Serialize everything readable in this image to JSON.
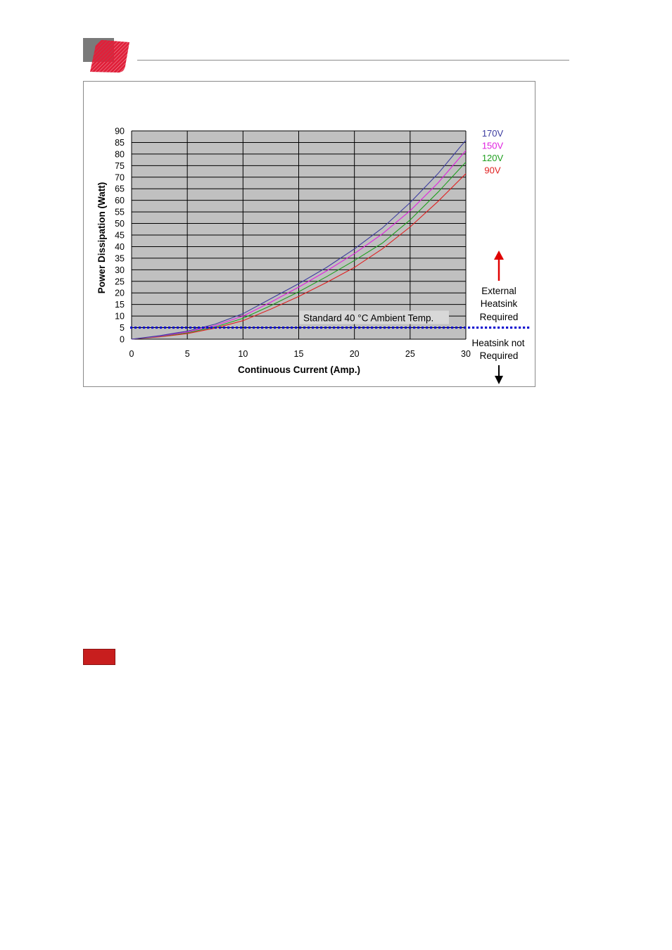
{
  "colors": {
    "plot_background": "#c0c0c0",
    "reference_line": "#1010d0",
    "arrow_up": "#e00000",
    "arrow_down": "#000000",
    "logo_red": "#e0203a",
    "logo_gray": "#7a7a7a",
    "red_tab": "#c81e1e"
  },
  "chart_data": {
    "type": "line",
    "title": "",
    "xlabel": "Continuous Current (Amp.)",
    "ylabel": "Power Dissipation (Watt)",
    "xlim": [
      0,
      30
    ],
    "ylim": [
      0,
      90
    ],
    "xticks": [
      0,
      5,
      10,
      15,
      20,
      25,
      30
    ],
    "yticks": [
      0,
      5,
      10,
      15,
      20,
      25,
      30,
      35,
      40,
      45,
      50,
      55,
      60,
      65,
      70,
      75,
      80,
      85,
      90
    ],
    "grid": true,
    "legend_position": "top-right",
    "x": [
      0,
      2.5,
      5,
      7.5,
      10,
      12.5,
      15,
      17.5,
      20,
      22.5,
      25,
      27.5,
      30
    ],
    "series": [
      {
        "name": "170V",
        "color": "#3c3ca0",
        "values": [
          0,
          1.5,
          3.5,
          6.5,
          11,
          17.5,
          24,
          31,
          39,
          48,
          59,
          71.5,
          86
        ]
      },
      {
        "name": "150V",
        "color": "#e020e0",
        "values": [
          0,
          1.3,
          3.1,
          5.9,
          10,
          16,
          22.5,
          29.5,
          37,
          45.5,
          55.5,
          67.5,
          81.5
        ]
      },
      {
        "name": "120V",
        "color": "#20a020",
        "values": [
          0,
          1.2,
          2.8,
          5.3,
          9,
          14.5,
          20.5,
          27,
          34,
          41.5,
          51.5,
          63.5,
          76.5
        ]
      },
      {
        "name": "90V",
        "color": "#e02020",
        "values": [
          0,
          1.0,
          2.4,
          4.8,
          8,
          13,
          18.5,
          24.5,
          31,
          39,
          48.5,
          59.5,
          71.5
        ]
      }
    ],
    "reference_line": {
      "y": 5,
      "label": "Standard 40 °C Ambient Temp."
    },
    "annotations": {
      "above": [
        "External",
        "Heatsink",
        "Required"
      ],
      "below": [
        "Heatsink not",
        "Required"
      ]
    }
  }
}
